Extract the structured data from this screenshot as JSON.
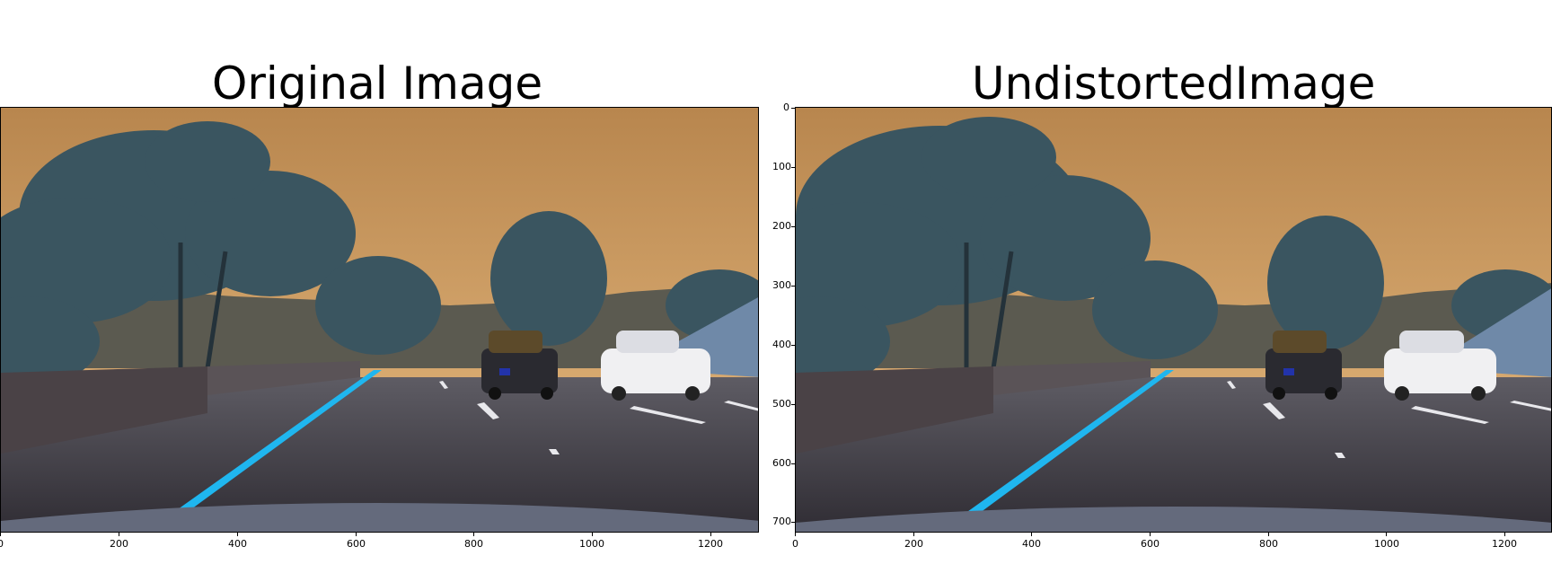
{
  "panels": [
    {
      "title": "Original Image",
      "x_ticks": [
        "0",
        "200",
        "400",
        "600",
        "800",
        "1000",
        "1200"
      ],
      "y_ticks": []
    },
    {
      "title": "UndistortedImage",
      "x_ticks": [
        "0",
        "200",
        "400",
        "600",
        "800",
        "1000",
        "1200"
      ],
      "y_ticks": [
        "0",
        "100",
        "200",
        "300",
        "400",
        "500",
        "600",
        "700"
      ]
    }
  ],
  "colors": {
    "sky_top": "#b8864e",
    "sky_horizon": "#e0b27a",
    "trees": "#3a5560",
    "road": "#3b383f",
    "lane_line": "#1fb6ef",
    "car_dark": "#2a2a30",
    "car_white": "#f0f0f2"
  }
}
